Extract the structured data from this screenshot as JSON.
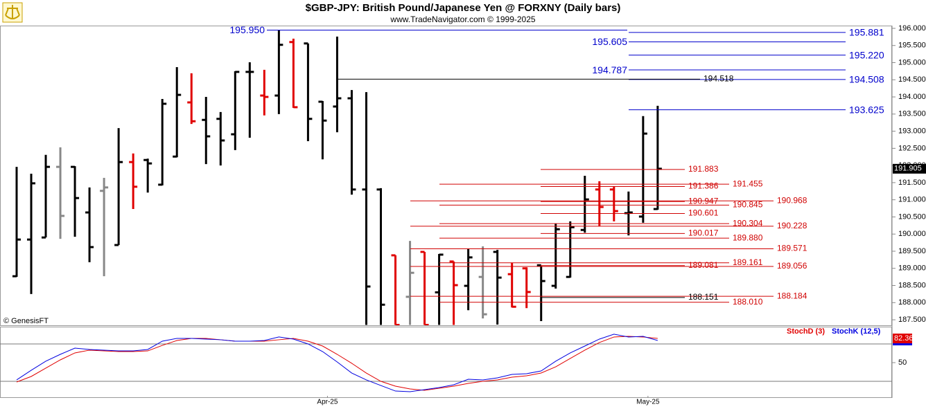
{
  "chart_data": [
    {
      "type": "ohlc",
      "title": "$GBP-JPY:  British Pound/Japanese Yen @ FORXNY  (Daily bars)",
      "subtitle": "www.TradeNavigator.com © 1999-2025",
      "credit": "© GenesisFT",
      "categories": [
        null,
        null,
        null,
        null,
        null,
        null,
        null,
        null,
        null,
        null,
        null,
        null,
        null,
        null,
        null,
        null,
        null,
        null,
        null,
        null,
        null,
        "Apr-25",
        null,
        null,
        null,
        null,
        null,
        null,
        null,
        null,
        null,
        null,
        null,
        null,
        null,
        null,
        null,
        null,
        null,
        null,
        null,
        null,
        null,
        "May-25",
        null
      ],
      "open": [
        188.77,
        189.84,
        189.9,
        191.96,
        191.96,
        190.63,
        191.26,
        189.68,
        192.1,
        192.16,
        191.44,
        192.26,
        193.84,
        193.33,
        193.36,
        192.91,
        194.73,
        194.04,
        194.04,
        195.6,
        195.56,
        193.86,
        193.72,
        193.96,
        191.3,
        191.3,
        189.38,
        188.17,
        189.48,
        188.3,
        189.2,
        188.49,
        188.75,
        189.48,
        188.83,
        189.0,
        189.09,
        188.49,
        188.75,
        190.12,
        191.3,
        191.3,
        190.61,
        190.51,
        190.73
      ],
      "high": [
        191.96,
        191.76,
        192.31,
        192.53,
        191.98,
        191.36,
        191.64,
        193.09,
        192.35,
        192.2,
        193.94,
        194.87,
        194.69,
        194.0,
        193.56,
        194.75,
        195.01,
        194.79,
        195.95,
        195.7,
        195.56,
        193.88,
        195.76,
        194.2,
        194.14,
        191.34,
        189.38,
        189.8,
        189.48,
        189.42,
        189.2,
        189.56,
        189.64,
        189.54,
        189.16,
        189.03,
        189.07,
        190.31,
        190.37,
        191.7,
        191.54,
        191.38,
        191.24,
        193.44,
        193.74
      ],
      "low": [
        188.75,
        188.25,
        189.9,
        189.86,
        189.92,
        189.18,
        188.77,
        189.68,
        190.73,
        191.21,
        191.42,
        192.24,
        193.21,
        192.04,
        192.0,
        192.45,
        192.81,
        193.46,
        193.5,
        193.68,
        192.71,
        192.18,
        192.97,
        191.15,
        187.35,
        187.35,
        187.35,
        187.35,
        187.35,
        187.35,
        187.35,
        187.78,
        187.54,
        187.36,
        187.86,
        187.84,
        187.46,
        188.41,
        188.73,
        190.04,
        190.23,
        190.37,
        189.96,
        190.33,
        190.71
      ],
      "close": [
        189.84,
        191.48,
        191.96,
        190.53,
        191.05,
        189.62,
        191.36,
        192.1,
        191.38,
        192.06,
        193.8,
        194.06,
        193.29,
        192.85,
        192.73,
        194.73,
        194.73,
        194.0,
        195.52,
        193.7,
        193.36,
        193.31,
        193.96,
        191.3,
        188.47,
        187.94,
        187.35,
        188.87,
        187.35,
        189.4,
        188.51,
        189.32,
        187.66,
        188.73,
        187.88,
        188.31,
        188.63,
        190.14,
        190.2,
        191.01,
        190.79,
        190.67,
        190.63,
        192.93,
        191.905
      ],
      "bar_colors": [
        "#000000",
        "#000000",
        "#000000",
        "#888888",
        "#000000",
        "#000000",
        "#888888",
        "#000000",
        "#e00000",
        "#000000",
        "#000000",
        "#000000",
        "#e00000",
        "#000000",
        "#000000",
        "#000000",
        "#000000",
        "#e00000",
        "#000000",
        "#e00000",
        "#000000",
        "#000000",
        "#000000",
        "#000000",
        "#000000",
        "#000000",
        "#e00000",
        "#888888",
        "#e00000",
        "#000000",
        "#e00000",
        "#000000",
        "#888888",
        "#000000",
        "#e00000",
        "#e00000",
        "#000000",
        "#000000",
        "#000000",
        "#000000",
        "#e00000",
        "#e00000",
        "#000000",
        "#000000",
        "#000000"
      ],
      "ylim": [
        187.34,
        196.08
      ],
      "yticks": [
        {
          "value": 187.5,
          "label": "187.500"
        },
        {
          "value": 188,
          "label": "188.000"
        },
        {
          "value": 188.5,
          "label": "188.500"
        },
        {
          "value": 189,
          "label": "189.000"
        },
        {
          "value": 189.5,
          "label": "189.500"
        },
        {
          "value": 190,
          "label": "190.000"
        },
        {
          "value": 190.5,
          "label": "190.500"
        },
        {
          "value": 191,
          "label": "191.000"
        },
        {
          "value": 191.5,
          "label": "191.500"
        },
        {
          "value": 192,
          "label": "192.000"
        },
        {
          "value": 192.5,
          "label": "192.500"
        },
        {
          "value": 193,
          "label": "193.000"
        },
        {
          "value": 193.5,
          "label": "193.500"
        },
        {
          "value": 194,
          "label": "194.000"
        },
        {
          "value": 194.5,
          "label": "194.500"
        },
        {
          "value": 195,
          "label": "195.000"
        },
        {
          "value": 195.5,
          "label": "195.500"
        },
        {
          "value": 196,
          "label": "196.000"
        }
      ],
      "levels": [
        {
          "value": 195.95,
          "label": "195.950",
          "color": "#0000cc"
        },
        {
          "value": 195.881,
          "color": "#0000cc"
        },
        {
          "value": 195.605,
          "color": "#0000cc"
        },
        {
          "value": 195.22,
          "label": "195.220",
          "color": "#0000cc"
        },
        {
          "value": 194.787,
          "color": "#0000cc"
        },
        {
          "value": 194.508,
          "color": "#0000cc"
        },
        {
          "value": 194.518,
          "color": "#000000"
        },
        {
          "value": 193.625,
          "color": "#0000cc"
        },
        {
          "value": 191.883,
          "color": "#d00000"
        },
        {
          "value": 191.455,
          "color": "#d00000"
        },
        {
          "value": 191.386,
          "color": "#d00000"
        },
        {
          "value": 190.968,
          "color": "#d00000"
        },
        {
          "value": 190.947,
          "color": "#d00000"
        },
        {
          "value": 190.845,
          "color": "#d00000"
        },
        {
          "value": 190.601,
          "color": "#d00000"
        },
        {
          "value": 190.304,
          "color": "#d00000"
        },
        {
          "value": 190.228,
          "color": "#d00000"
        },
        {
          "value": 190.017,
          "color": "#d00000"
        },
        {
          "value": 189.88,
          "label": "189.880",
          "color": "#d00000"
        },
        {
          "value": 189.571,
          "color": "#d00000"
        },
        {
          "value": 189.161,
          "color": "#d00000"
        },
        {
          "value": 189.081,
          "color": "#d00000"
        },
        {
          "value": 189.056,
          "color": "#d00000"
        },
        {
          "value": 188.184,
          "color": "#d00000"
        },
        {
          "value": 188.151,
          "color": "#000000"
        },
        {
          "value": 188.01,
          "label": "188.010",
          "color": "#d00000"
        }
      ]
    },
    {
      "type": "line",
      "series": [
        {
          "name": "StochD (3)",
          "color": "#e00000",
          "values": [
            24.1,
            31.5,
            42.6,
            53.7,
            63.0,
            66.7,
            65.7,
            64.8,
            64.8,
            65.7,
            73.1,
            79.6,
            82.4,
            82.4,
            80.6,
            78.7,
            78.7,
            78.7,
            80.6,
            82.4,
            78.7,
            72.2,
            61.1,
            49.1,
            36.1,
            25.0,
            18.5,
            14.8,
            13.0,
            15.7,
            18.5,
            22.2,
            25.0,
            26.9,
            30.6,
            32.4,
            36.1,
            44.4,
            55.6,
            66.7,
            76.9,
            84.3,
            85.2,
            84.3,
            82.36
          ]
        },
        {
          "name": "StochK (12,5)",
          "color": "#0000e0",
          "values": [
            26.9,
            39.8,
            51.9,
            61.1,
            69.4,
            67.6,
            66.7,
            65.7,
            65.7,
            67.6,
            78.7,
            82.4,
            82.4,
            81.5,
            80.6,
            78.7,
            78.7,
            79.6,
            84.3,
            81.5,
            75.0,
            64.8,
            50.9,
            36.1,
            26.9,
            19.4,
            12.0,
            11.1,
            13.9,
            16.7,
            20.4,
            27.8,
            26.9,
            29.6,
            34.3,
            35.2,
            38.9,
            51.9,
            63.0,
            72.2,
            81.5,
            88.0,
            84.3,
            85.2,
            79.6
          ]
        }
      ],
      "ylim": [
        2.8,
        97.2
      ],
      "yticks": [
        50
      ],
      "reference_lines": [
        75,
        25
      ]
    }
  ]
}
